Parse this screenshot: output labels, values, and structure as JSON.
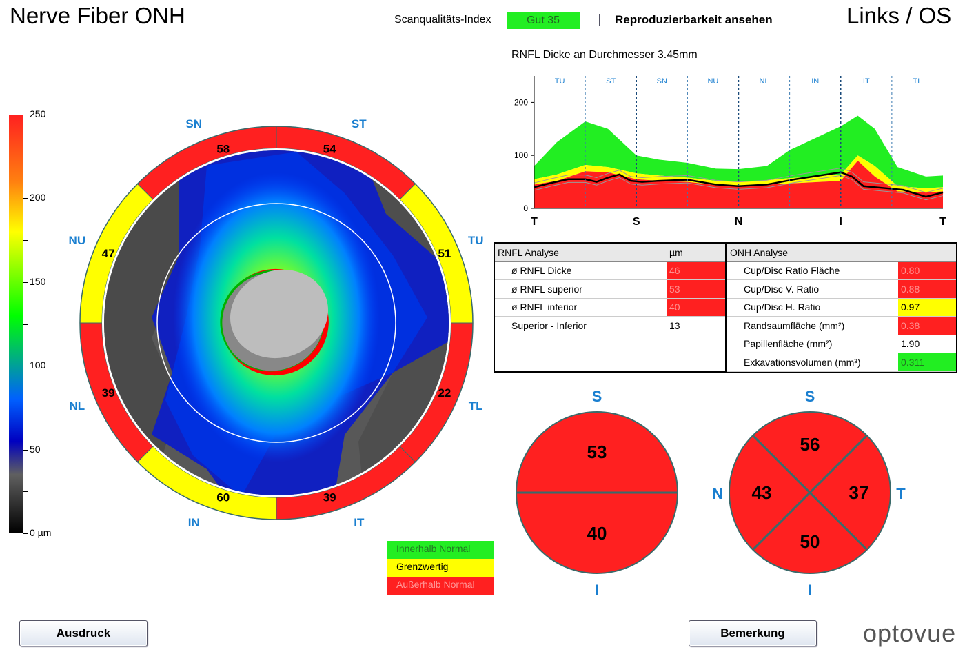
{
  "header": {
    "title": "Nerve Fiber ONH",
    "scan_quality_label": "Scanqualitäts-Index",
    "scan_quality_value": "Gut  35",
    "reproducibility_label": "Reproduzierbarkeit ansehen",
    "eye": "Links / OS"
  },
  "colorbar": {
    "labels": [
      "250",
      "200",
      "150",
      "100",
      "50",
      "0 µm"
    ]
  },
  "thickness_map": {
    "sector_labels": {
      "SN": "SN",
      "ST": "ST",
      "TU": "TU",
      "TL": "TL",
      "IT": "IT",
      "IN": "IN",
      "NL": "NL",
      "NU": "NU"
    },
    "sector_values": {
      "SN": "58",
      "ST": "54",
      "TU": "51",
      "TL": "22",
      "IT": "39",
      "IN": "60",
      "NL": "39",
      "NU": "47"
    },
    "sector_status": {
      "SN": "red",
      "ST": "red",
      "TU": "yellow",
      "TL": "red",
      "IT": "red",
      "IN": "yellow",
      "NL": "red",
      "NU": "yellow"
    }
  },
  "chart_data": {
    "type": "line",
    "title": "RNFL Dicke an Durchmesser 3.45mm",
    "sector_labels": [
      "TU",
      "ST",
      "SN",
      "NU",
      "NL",
      "IN",
      "IT",
      "TL"
    ],
    "x_ticks": [
      "T",
      "S",
      "N",
      "I",
      "T"
    ],
    "y_ticks": [
      "200",
      "100",
      "0"
    ],
    "ylim": [
      0,
      250
    ],
    "xlim": [
      0,
      360
    ],
    "bands": {
      "red_top": [
        [
          0,
          45
        ],
        [
          20,
          52
        ],
        [
          45,
          70
        ],
        [
          65,
          68
        ],
        [
          90,
          55
        ],
        [
          110,
          52
        ],
        [
          135,
          50
        ],
        [
          160,
          44
        ],
        [
          180,
          42
        ],
        [
          205,
          45
        ],
        [
          225,
          47
        ],
        [
          270,
          52
        ],
        [
          285,
          90
        ],
        [
          300,
          60
        ],
        [
          320,
          32
        ],
        [
          345,
          30
        ],
        [
          360,
          32
        ]
      ],
      "yellow_top": [
        [
          0,
          55
        ],
        [
          20,
          64
        ],
        [
          45,
          82
        ],
        [
          65,
          78
        ],
        [
          90,
          66
        ],
        [
          110,
          62
        ],
        [
          135,
          58
        ],
        [
          160,
          52
        ],
        [
          180,
          50
        ],
        [
          205,
          53
        ],
        [
          225,
          57
        ],
        [
          270,
          64
        ],
        [
          285,
          100
        ],
        [
          300,
          80
        ],
        [
          320,
          42
        ],
        [
          345,
          38
        ],
        [
          360,
          40
        ]
      ],
      "green_top": [
        [
          0,
          80
        ],
        [
          20,
          125
        ],
        [
          45,
          164
        ],
        [
          65,
          150
        ],
        [
          90,
          100
        ],
        [
          110,
          92
        ],
        [
          135,
          86
        ],
        [
          160,
          75
        ],
        [
          180,
          74
        ],
        [
          205,
          80
        ],
        [
          225,
          110
        ],
        [
          270,
          155
        ],
        [
          285,
          175
        ],
        [
          300,
          150
        ],
        [
          320,
          78
        ],
        [
          345,
          60
        ],
        [
          360,
          62
        ]
      ]
    },
    "patient_line": [
      [
        0,
        40
      ],
      [
        15,
        48
      ],
      [
        30,
        55
      ],
      [
        45,
        55
      ],
      [
        55,
        50
      ],
      [
        65,
        58
      ],
      [
        75,
        64
      ],
      [
        85,
        52
      ],
      [
        95,
        50
      ],
      [
        110,
        52
      ],
      [
        135,
        54
      ],
      [
        160,
        45
      ],
      [
        180,
        42
      ],
      [
        205,
        45
      ],
      [
        230,
        55
      ],
      [
        270,
        68
      ],
      [
        280,
        60
      ],
      [
        290,
        42
      ],
      [
        310,
        38
      ],
      [
        325,
        35
      ],
      [
        345,
        22
      ],
      [
        360,
        30
      ]
    ]
  },
  "rnfl_table": {
    "header": [
      "RNFL Analyse",
      "µm"
    ],
    "rows": [
      {
        "label": "ø RNFL Dicke",
        "value": "46",
        "status": "red"
      },
      {
        "label": "ø RNFL superior",
        "value": "53",
        "status": "red"
      },
      {
        "label": "ø RNFL inferior",
        "value": "40",
        "status": "red"
      },
      {
        "label": "Superior - Inferior",
        "value": "13",
        "status": "none"
      }
    ]
  },
  "onh_table": {
    "header": [
      "ONH Analyse",
      ""
    ],
    "rows": [
      {
        "label": "Cup/Disc Ratio Fläche",
        "value": "0.80",
        "status": "red"
      },
      {
        "label": "Cup/Disc V. Ratio",
        "value": "0.88",
        "status": "red"
      },
      {
        "label": "Cup/Disc H. Ratio",
        "value": "0.97",
        "status": "yellow"
      },
      {
        "label": "Randsaumfläche (mm²)",
        "value": "0.38",
        "status": "red"
      },
      {
        "label": "Papillenfläche (mm²)",
        "value": "1.90",
        "status": "none"
      },
      {
        "label": "Exkavationsvolumen (mm³)",
        "value": "0.311",
        "status": "green"
      }
    ]
  },
  "hemi_circle": {
    "S": "S",
    "I": "I",
    "superior": "53",
    "inferior": "40"
  },
  "quad_circle": {
    "S": "S",
    "I": "I",
    "N": "N",
    "T": "T",
    "superior": "56",
    "nasal": "43",
    "temporal": "37",
    "inferior": "50"
  },
  "legend": {
    "normal": "Innerhalb Normal",
    "borderline": "Grenzwertig",
    "outside": "Außerhalb Normal"
  },
  "buttons": {
    "print": "Ausdruck",
    "comment": "Bemerkung"
  },
  "logo": "optovue",
  "colors": {
    "red": "#ff2020",
    "yellow": "#ffff00",
    "green": "#22ee22",
    "accent_blue": "#1a7fd0"
  }
}
